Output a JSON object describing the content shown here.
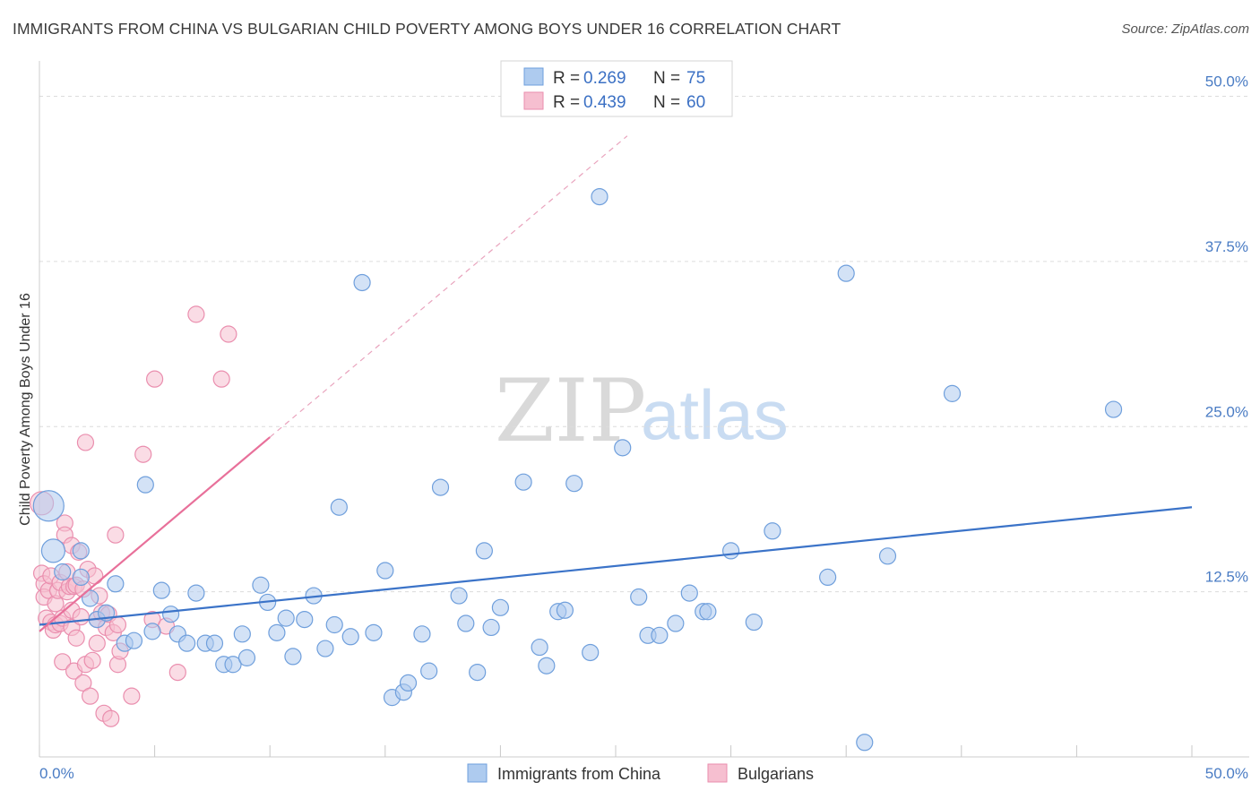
{
  "header": {
    "title": "IMMIGRANTS FROM CHINA VS BULGARIAN CHILD POVERTY AMONG BOYS UNDER 16 CORRELATION CHART",
    "source": "Source: ZipAtlas.com"
  },
  "watermark": {
    "zip": "ZIP",
    "atlas": "atlas"
  },
  "colors": {
    "blue_fill": "#aecbef",
    "blue_stroke": "#6f9fdc",
    "blue_line": "#3b73c8",
    "pink_fill": "#f6bfd0",
    "pink_stroke": "#ea8eae",
    "pink_line": "#e8709a",
    "axis_label": "#4a7cc4",
    "grid": "#dcdcdc"
  },
  "legend": {
    "rows": [
      {
        "r_label": "R =",
        "r_value": "0.269",
        "n_label": "N =",
        "n_value": "75"
      },
      {
        "r_label": "R =",
        "r_value": "0.439",
        "n_label": "N =",
        "n_value": "60"
      }
    ]
  },
  "chart_data": {
    "type": "scatter",
    "title": "IMMIGRANTS FROM CHINA VS BULGARIAN CHILD POVERTY AMONG BOYS UNDER 16 CORRELATION CHART",
    "xlabel": "",
    "ylabel": "Child Poverty Among Boys Under 16",
    "xlim": [
      0,
      50
    ],
    "ylim": [
      0,
      52
    ],
    "x_tick_labels": [
      "0.0%",
      "50.0%"
    ],
    "y_ticks": [
      12.5,
      25.0,
      37.5,
      50.0
    ],
    "y_tick_labels": [
      "12.5%",
      "25.0%",
      "37.5%",
      "50.0%"
    ],
    "grid": "horizontal dashed",
    "legend_position": "top-center",
    "bottom_legend": [
      "Immigrants from China",
      "Bulgarians"
    ],
    "series": [
      {
        "name": "Immigrants from China",
        "color": "#aecbef",
        "trend": {
          "x": [
            0,
            50
          ],
          "y": [
            10.0,
            18.9
          ]
        },
        "points": [
          {
            "x": 0.4,
            "y": 19.0,
            "s": "l"
          },
          {
            "x": 0.6,
            "y": 15.6,
            "s": "m"
          },
          {
            "x": 1.0,
            "y": 14.0
          },
          {
            "x": 1.8,
            "y": 15.6
          },
          {
            "x": 1.8,
            "y": 13.6
          },
          {
            "x": 2.2,
            "y": 12.0
          },
          {
            "x": 2.5,
            "y": 10.4
          },
          {
            "x": 2.9,
            "y": 10.9
          },
          {
            "x": 3.3,
            "y": 13.1
          },
          {
            "x": 3.7,
            "y": 8.6
          },
          {
            "x": 4.1,
            "y": 8.8
          },
          {
            "x": 4.6,
            "y": 20.6
          },
          {
            "x": 4.9,
            "y": 9.5
          },
          {
            "x": 5.3,
            "y": 12.6
          },
          {
            "x": 5.7,
            "y": 10.8
          },
          {
            "x": 6.0,
            "y": 9.3
          },
          {
            "x": 6.4,
            "y": 8.6
          },
          {
            "x": 6.8,
            "y": 12.4
          },
          {
            "x": 7.2,
            "y": 8.6
          },
          {
            "x": 7.6,
            "y": 8.6
          },
          {
            "x": 8.0,
            "y": 7.0
          },
          {
            "x": 8.4,
            "y": 7.0
          },
          {
            "x": 8.8,
            "y": 9.3
          },
          {
            "x": 9.0,
            "y": 7.5
          },
          {
            "x": 9.6,
            "y": 13.0
          },
          {
            "x": 9.9,
            "y": 11.7
          },
          {
            "x": 10.3,
            "y": 9.4
          },
          {
            "x": 10.7,
            "y": 10.5
          },
          {
            "x": 11.0,
            "y": 7.6
          },
          {
            "x": 11.5,
            "y": 10.4
          },
          {
            "x": 11.9,
            "y": 12.2
          },
          {
            "x": 12.4,
            "y": 8.2
          },
          {
            "x": 12.8,
            "y": 10.0
          },
          {
            "x": 13.0,
            "y": 18.9
          },
          {
            "x": 13.5,
            "y": 9.1
          },
          {
            "x": 14.0,
            "y": 35.9
          },
          {
            "x": 14.5,
            "y": 9.4
          },
          {
            "x": 15.0,
            "y": 14.1
          },
          {
            "x": 15.3,
            "y": 4.5
          },
          {
            "x": 15.8,
            "y": 4.9
          },
          {
            "x": 16.0,
            "y": 5.6
          },
          {
            "x": 16.6,
            "y": 9.3
          },
          {
            "x": 16.9,
            "y": 6.5
          },
          {
            "x": 17.4,
            "y": 20.4
          },
          {
            "x": 18.2,
            "y": 12.2
          },
          {
            "x": 18.5,
            "y": 10.1
          },
          {
            "x": 19.0,
            "y": 6.4
          },
          {
            "x": 19.3,
            "y": 15.6
          },
          {
            "x": 19.6,
            "y": 9.8
          },
          {
            "x": 20.0,
            "y": 11.3
          },
          {
            "x": 21.0,
            "y": 20.8
          },
          {
            "x": 21.7,
            "y": 8.3
          },
          {
            "x": 22.0,
            "y": 6.9
          },
          {
            "x": 22.5,
            "y": 11.0
          },
          {
            "x": 22.8,
            "y": 11.1
          },
          {
            "x": 23.2,
            "y": 20.7
          },
          {
            "x": 23.9,
            "y": 7.9
          },
          {
            "x": 24.3,
            "y": 42.4
          },
          {
            "x": 25.3,
            "y": 23.4
          },
          {
            "x": 26.0,
            "y": 12.1
          },
          {
            "x": 26.4,
            "y": 9.2
          },
          {
            "x": 26.9,
            "y": 9.2
          },
          {
            "x": 27.6,
            "y": 10.1
          },
          {
            "x": 28.2,
            "y": 12.4
          },
          {
            "x": 28.8,
            "y": 11.0
          },
          {
            "x": 29.0,
            "y": 11.0
          },
          {
            "x": 30.0,
            "y": 15.6
          },
          {
            "x": 31.0,
            "y": 10.2
          },
          {
            "x": 31.8,
            "y": 17.1
          },
          {
            "x": 34.2,
            "y": 13.6
          },
          {
            "x": 35.0,
            "y": 36.6
          },
          {
            "x": 35.8,
            "y": 1.1
          },
          {
            "x": 36.8,
            "y": 15.2
          },
          {
            "x": 39.6,
            "y": 27.5
          },
          {
            "x": 46.6,
            "y": 26.3
          }
        ]
      },
      {
        "name": "Bulgarians",
        "color": "#f6bfd0",
        "trend": {
          "x": [
            0,
            10
          ],
          "y": [
            9.5,
            24.2
          ]
        },
        "trend_extension": {
          "x": [
            10,
            25.5
          ],
          "y": [
            24.2,
            47.0
          ]
        },
        "points": [
          {
            "x": 0.1,
            "y": 19.2,
            "s": "m"
          },
          {
            "x": 0.1,
            "y": 13.9
          },
          {
            "x": 0.2,
            "y": 13.1
          },
          {
            "x": 0.2,
            "y": 12.1
          },
          {
            "x": 0.3,
            "y": 10.5
          },
          {
            "x": 0.4,
            "y": 12.6
          },
          {
            "x": 0.5,
            "y": 10.2
          },
          {
            "x": 0.5,
            "y": 13.7
          },
          {
            "x": 0.6,
            "y": 9.6
          },
          {
            "x": 0.7,
            "y": 10.0
          },
          {
            "x": 0.7,
            "y": 11.6
          },
          {
            "x": 0.8,
            "y": 12.6
          },
          {
            "x": 0.9,
            "y": 13.2
          },
          {
            "x": 0.9,
            "y": 10.1
          },
          {
            "x": 1.0,
            "y": 7.2
          },
          {
            "x": 1.0,
            "y": 10.5
          },
          {
            "x": 1.1,
            "y": 17.7
          },
          {
            "x": 1.1,
            "y": 16.8
          },
          {
            "x": 1.2,
            "y": 12.5
          },
          {
            "x": 1.2,
            "y": 14.0
          },
          {
            "x": 1.3,
            "y": 12.9
          },
          {
            "x": 1.4,
            "y": 16.0
          },
          {
            "x": 1.4,
            "y": 9.8
          },
          {
            "x": 1.4,
            "y": 11.1
          },
          {
            "x": 1.5,
            "y": 12.9
          },
          {
            "x": 1.5,
            "y": 6.5
          },
          {
            "x": 1.6,
            "y": 13.0
          },
          {
            "x": 1.6,
            "y": 9.0
          },
          {
            "x": 1.7,
            "y": 15.5
          },
          {
            "x": 1.8,
            "y": 10.6
          },
          {
            "x": 1.9,
            "y": 12.7
          },
          {
            "x": 1.9,
            "y": 5.6
          },
          {
            "x": 2.0,
            "y": 23.8
          },
          {
            "x": 2.0,
            "y": 7.0
          },
          {
            "x": 2.1,
            "y": 14.2
          },
          {
            "x": 2.2,
            "y": 4.6
          },
          {
            "x": 2.3,
            "y": 7.3
          },
          {
            "x": 2.4,
            "y": 13.7
          },
          {
            "x": 2.5,
            "y": 10.4
          },
          {
            "x": 2.5,
            "y": 8.6
          },
          {
            "x": 2.6,
            "y": 12.2
          },
          {
            "x": 2.7,
            "y": 10.9
          },
          {
            "x": 2.8,
            "y": 3.3
          },
          {
            "x": 2.9,
            "y": 9.8
          },
          {
            "x": 3.0,
            "y": 10.8
          },
          {
            "x": 3.1,
            "y": 2.9
          },
          {
            "x": 3.2,
            "y": 9.4
          },
          {
            "x": 3.3,
            "y": 16.8
          },
          {
            "x": 3.4,
            "y": 10.0
          },
          {
            "x": 3.4,
            "y": 7.0
          },
          {
            "x": 3.5,
            "y": 8.0
          },
          {
            "x": 4.0,
            "y": 4.6
          },
          {
            "x": 4.5,
            "y": 22.9
          },
          {
            "x": 4.9,
            "y": 10.4
          },
          {
            "x": 5.0,
            "y": 28.6
          },
          {
            "x": 5.5,
            "y": 9.9
          },
          {
            "x": 6.0,
            "y": 6.4
          },
          {
            "x": 6.8,
            "y": 33.5
          },
          {
            "x": 7.9,
            "y": 28.6
          },
          {
            "x": 8.2,
            "y": 32.0
          }
        ]
      }
    ]
  }
}
